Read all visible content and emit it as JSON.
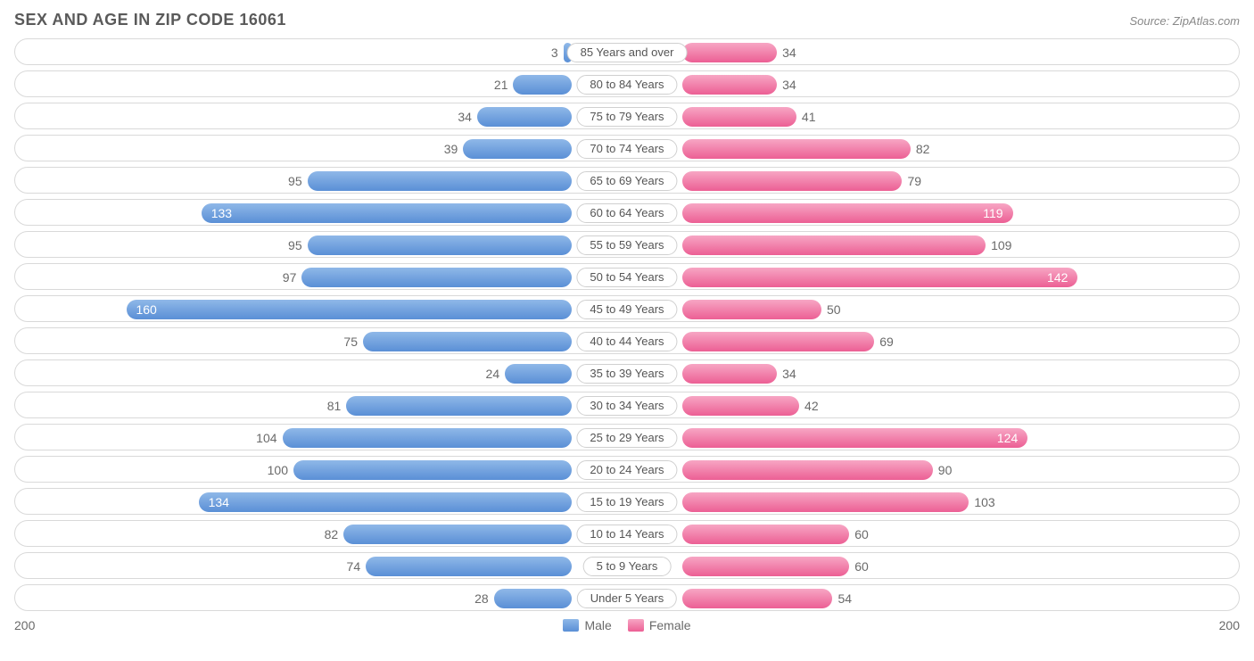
{
  "title": "SEX AND AGE IN ZIP CODE 16061",
  "source": "Source: ZipAtlas.com",
  "axis_max": 200,
  "axis_left_label": "200",
  "axis_right_label": "200",
  "legend": {
    "male": "Male",
    "female": "Female"
  },
  "label_half_width": 62,
  "inside_threshold": 115,
  "colors": {
    "male_top": "#8fb8e8",
    "male_bottom": "#5a8fd6",
    "female_top": "#f7a6c4",
    "female_bottom": "#ec5f94",
    "row_border": "#d9d9d9",
    "text": "#6a6a6a",
    "title": "#5a5a5a",
    "background": "#ffffff"
  },
  "rows": [
    {
      "age": "85 Years and over",
      "male": 3,
      "female": 34
    },
    {
      "age": "80 to 84 Years",
      "male": 21,
      "female": 34
    },
    {
      "age": "75 to 79 Years",
      "male": 34,
      "female": 41
    },
    {
      "age": "70 to 74 Years",
      "male": 39,
      "female": 82
    },
    {
      "age": "65 to 69 Years",
      "male": 95,
      "female": 79
    },
    {
      "age": "60 to 64 Years",
      "male": 133,
      "female": 119
    },
    {
      "age": "55 to 59 Years",
      "male": 95,
      "female": 109
    },
    {
      "age": "50 to 54 Years",
      "male": 97,
      "female": 142
    },
    {
      "age": "45 to 49 Years",
      "male": 160,
      "female": 50
    },
    {
      "age": "40 to 44 Years",
      "male": 75,
      "female": 69
    },
    {
      "age": "35 to 39 Years",
      "male": 24,
      "female": 34
    },
    {
      "age": "30 to 34 Years",
      "male": 81,
      "female": 42
    },
    {
      "age": "25 to 29 Years",
      "male": 104,
      "female": 124
    },
    {
      "age": "20 to 24 Years",
      "male": 100,
      "female": 90
    },
    {
      "age": "15 to 19 Years",
      "male": 134,
      "female": 103
    },
    {
      "age": "10 to 14 Years",
      "male": 82,
      "female": 60
    },
    {
      "age": "5 to 9 Years",
      "male": 74,
      "female": 60
    },
    {
      "age": "Under 5 Years",
      "male": 28,
      "female": 54
    }
  ]
}
